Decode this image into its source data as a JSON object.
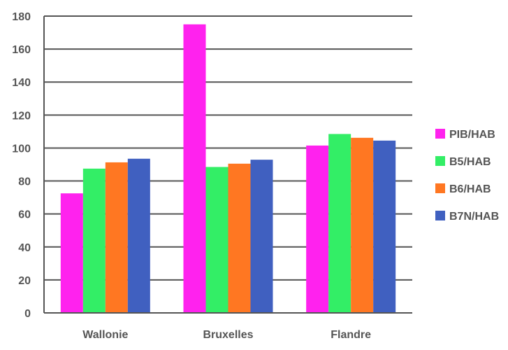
{
  "chart_data": {
    "type": "bar",
    "categories": [
      "Wallonie",
      "Bruxelles",
      "Flandre"
    ],
    "series": [
      {
        "name": "PIB/HAB",
        "color": "#ff22ee",
        "values": [
          72.5,
          175,
          101.5
        ]
      },
      {
        "name": "B5/HAB",
        "color": "#33ee66",
        "values": [
          87.5,
          88.5,
          108.5
        ]
      },
      {
        "name": "B6/HAB",
        "color": "#ff7722",
        "values": [
          91.3,
          90.5,
          106.2
        ]
      },
      {
        "name": "B7N/HAB",
        "color": "#4060c0",
        "values": [
          93.5,
          92.9,
          104.5
        ]
      }
    ],
    "ylim": [
      0,
      180
    ],
    "yticks": [
      0,
      20,
      40,
      60,
      80,
      100,
      120,
      140,
      160,
      180
    ],
    "title": "",
    "xlabel": "",
    "ylabel": "",
    "grid": true,
    "legend_position": "right"
  }
}
